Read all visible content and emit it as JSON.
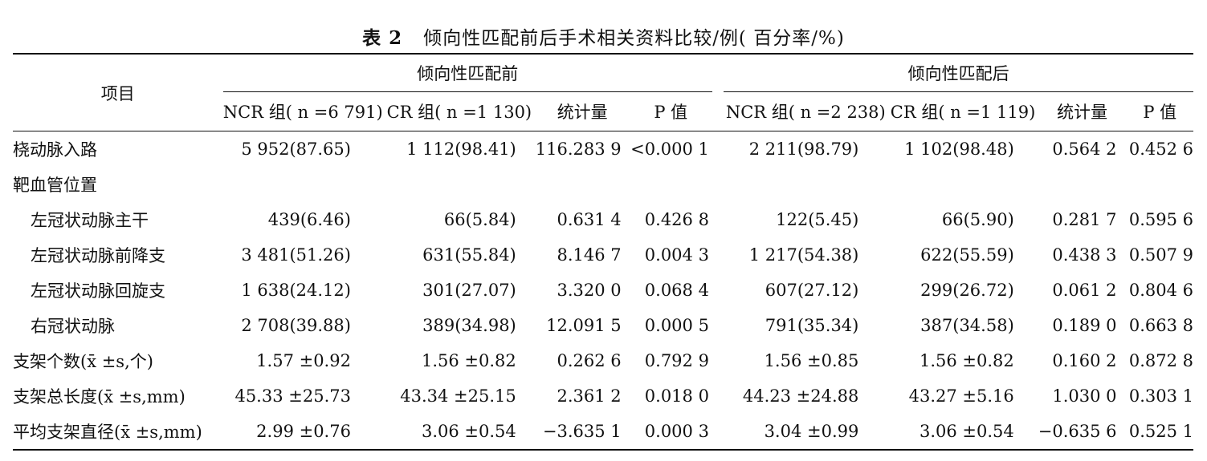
{
  "caption": {
    "number": "表 2",
    "title": "倾向性匹配前后手术相关资料比较/例( 百分率/%)"
  },
  "header": {
    "item_label": "项目",
    "group_before": "倾向性匹配前",
    "group_after": "倾向性匹配后",
    "before_cols": [
      "NCR 组( n =6 791)",
      "CR 组( n =1 130)",
      "统计量",
      "P 值"
    ],
    "after_cols": [
      "NCR 组( n =2 238)",
      "CR 组( n =1 119)",
      "统计量",
      "P 值"
    ]
  },
  "rows": [
    {
      "label": "桡动脉入路",
      "indent": false,
      "cells": [
        "5 952(87.65)",
        "1 112(98.41)",
        "116.283 9",
        "<0.000 1",
        "2 211(98.79)",
        "1 102(98.48)",
        "0.564 2",
        "0.452 6"
      ]
    },
    {
      "label": "靶血管位置",
      "indent": false,
      "cells": [
        "",
        "",
        "",
        "",
        "",
        "",
        "",
        ""
      ]
    },
    {
      "label": "左冠状动脉主干",
      "indent": true,
      "cells": [
        "439(6.46)",
        "66(5.84)",
        "0.631 4",
        "0.426 8",
        "122(5.45)",
        "66(5.90)",
        "0.281 7",
        "0.595 6"
      ]
    },
    {
      "label": "左冠状动脉前降支",
      "indent": true,
      "cells": [
        "3 481(51.26)",
        "631(55.84)",
        "8.146 7",
        "0.004 3",
        "1 217(54.38)",
        "622(55.59)",
        "0.438 3",
        "0.507 9"
      ]
    },
    {
      "label": "左冠状动脉回旋支",
      "indent": true,
      "cells": [
        "1 638(24.12)",
        "301(27.07)",
        "3.320 0",
        "0.068 4",
        "607(27.12)",
        "299(26.72)",
        "0.061 2",
        "0.804 6"
      ]
    },
    {
      "label": "右冠状动脉",
      "indent": true,
      "cells": [
        "2 708(39.88)",
        "389(34.98)",
        "12.091 5",
        "0.000 5",
        "791(35.34)",
        "387(34.58)",
        "0.189 0",
        "0.663 8"
      ]
    },
    {
      "label": "支架个数(x̄ ±s,个)",
      "indent": false,
      "cells": [
        "1.57 ±0.92",
        "1.56 ±0.82",
        "0.262 6",
        "0.792 9",
        "1.56 ±0.85",
        "1.56 ±0.82",
        "0.160 2",
        "0.872 8"
      ]
    },
    {
      "label": "支架总长度(x̄ ±s,mm)",
      "indent": false,
      "cells": [
        "45.33 ±25.73",
        "43.34 ±25.15",
        "2.361 2",
        "0.018 0",
        "44.23 ±24.88",
        "43.27 ±5.16",
        "1.030 0",
        "0.303 1"
      ]
    },
    {
      "label": "平均支架直径(x̄ ±s,mm)",
      "indent": false,
      "cells": [
        "2.99 ±0.76",
        "3.06 ±0.54",
        "−3.635 1",
        "0.000 3",
        "3.04 ±0.99",
        "3.06 ±0.54",
        "−0.635 6",
        "0.525 1"
      ]
    }
  ]
}
